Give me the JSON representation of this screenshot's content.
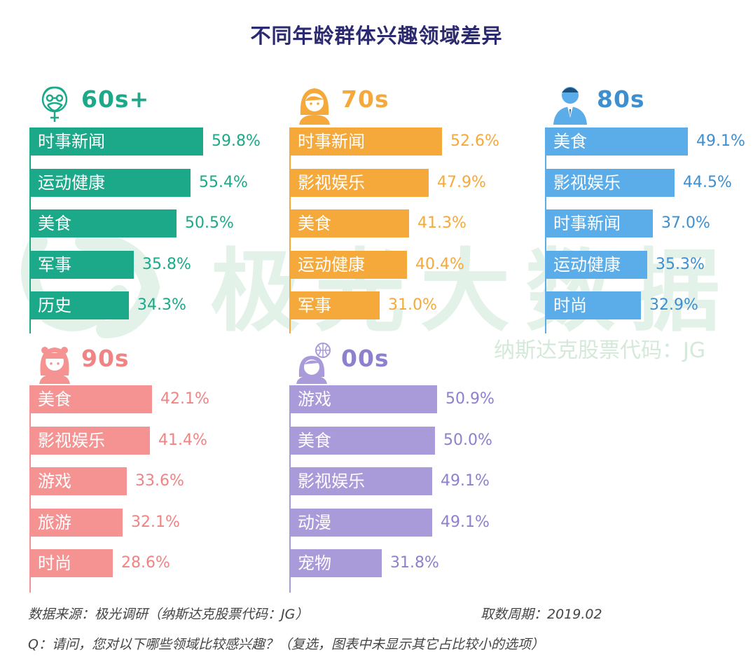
{
  "chart_data": {
    "type": "bar",
    "orientation": "horizontal",
    "title": "不同年龄群体兴趣领域差异",
    "unit": "%",
    "groups": [
      {
        "id": "g60",
        "label": "60s+",
        "color": "#1ba98a",
        "text_color": "#1ba98a",
        "icon": "elderly-man-icon",
        "items": [
          {
            "category": "时事新闻",
            "value": 59.8,
            "value_label": "59.8%"
          },
          {
            "category": "运动健康",
            "value": 55.4,
            "value_label": "55.4%"
          },
          {
            "category": "美食",
            "value": 50.5,
            "value_label": "50.5%"
          },
          {
            "category": "军事",
            "value": 35.8,
            "value_label": "35.8%"
          },
          {
            "category": "历史",
            "value": 34.3,
            "value_label": "34.3%"
          }
        ]
      },
      {
        "id": "g70",
        "label": "70s",
        "color": "#f6a93b",
        "text_color": "#f6a93b",
        "icon": "woman-icon",
        "items": [
          {
            "category": "时事新闻",
            "value": 52.6,
            "value_label": "52.6%"
          },
          {
            "category": "影视娱乐",
            "value": 47.9,
            "value_label": "47.9%"
          },
          {
            "category": "美食",
            "value": 41.3,
            "value_label": "41.3%"
          },
          {
            "category": "运动健康",
            "value": 40.4,
            "value_label": "40.4%"
          },
          {
            "category": "军事",
            "value": 31.0,
            "value_label": "31.0%"
          }
        ]
      },
      {
        "id": "g80",
        "label": "80s",
        "color": "#5badea",
        "text_color": "#3d8fd0",
        "icon": "businessman-icon",
        "items": [
          {
            "category": "美食",
            "value": 49.1,
            "value_label": "49.1%"
          },
          {
            "category": "影视娱乐",
            "value": 44.5,
            "value_label": "44.5%"
          },
          {
            "category": "时事新闻",
            "value": 37.0,
            "value_label": "37.0%"
          },
          {
            "category": "运动健康",
            "value": 35.3,
            "value_label": "35.3%"
          },
          {
            "category": "时尚",
            "value": 32.9,
            "value_label": "32.9%"
          }
        ]
      },
      {
        "id": "g90",
        "label": "90s",
        "color": "#f59393",
        "text_color": "#f08484",
        "icon": "girl-icon",
        "items": [
          {
            "category": "美食",
            "value": 42.1,
            "value_label": "42.1%"
          },
          {
            "category": "影视娱乐",
            "value": 41.4,
            "value_label": "41.4%"
          },
          {
            "category": "游戏",
            "value": 33.6,
            "value_label": "33.6%"
          },
          {
            "category": "旅游",
            "value": 32.1,
            "value_label": "32.1%"
          },
          {
            "category": "时尚",
            "value": 28.6,
            "value_label": "28.6%"
          }
        ]
      },
      {
        "id": "g00",
        "label": "00s",
        "color": "#a99ad9",
        "text_color": "#8f7fcf",
        "icon": "kid-with-globe-icon",
        "items": [
          {
            "category": "游戏",
            "value": 50.9,
            "value_label": "50.9%"
          },
          {
            "category": "美食",
            "value": 50.0,
            "value_label": "50.0%"
          },
          {
            "category": "影视娱乐",
            "value": 49.1,
            "value_label": "49.1%"
          },
          {
            "category": "动漫",
            "value": 49.1,
            "value_label": "49.1%"
          },
          {
            "category": "宠物",
            "value": 31.8,
            "value_label": "31.8%"
          }
        ]
      }
    ]
  },
  "watermark": {
    "brand": "极光大数据",
    "ticker": "纳斯达克股票代码：JG",
    "color": "#e3f2e8"
  },
  "footer": {
    "source": "数据来源：极光调研（纳斯达克股票代码：JG）",
    "period": "取数周期：2019.02",
    "question": "Q：请问，您对以下哪些领域比较感兴趣？（复选，图表中未显示其它占比较小的选项）"
  }
}
